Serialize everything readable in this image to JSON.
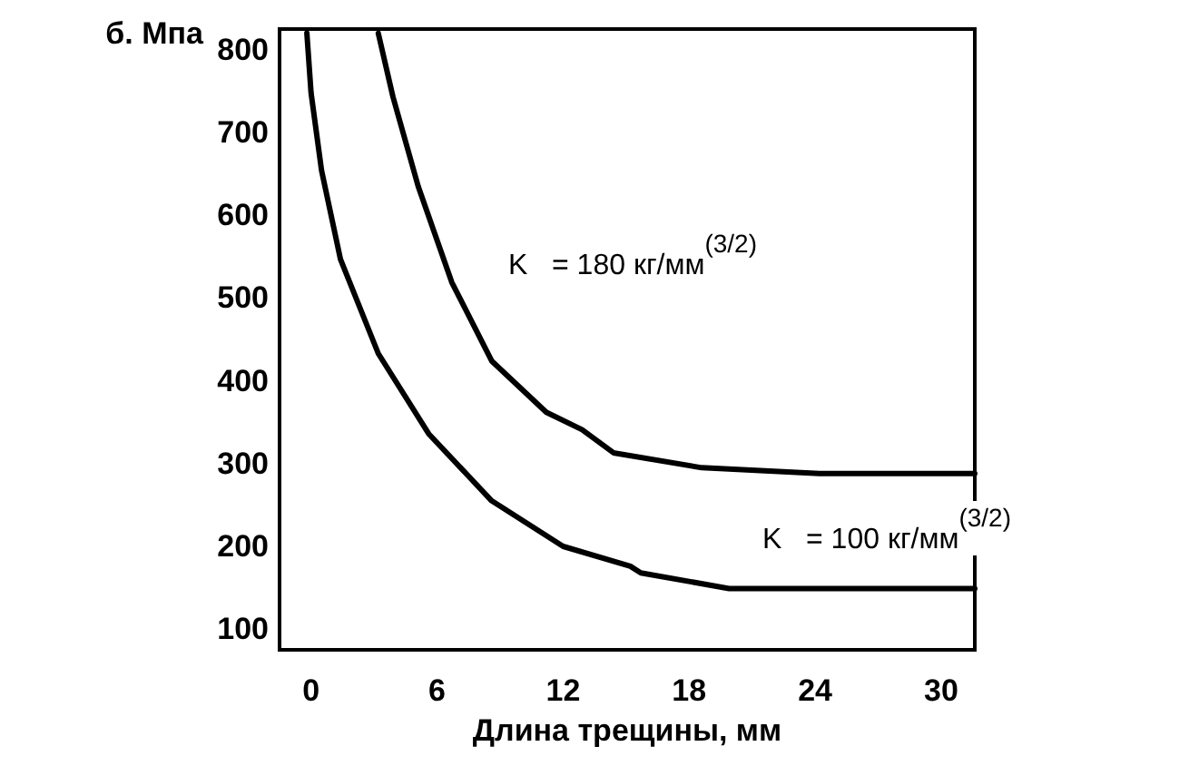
{
  "chart_data": {
    "type": "line",
    "xlabel": "Длина трещины, мм",
    "ylabel": "б. Мпа",
    "xlim": [
      -1.5,
      31.6
    ],
    "xticks": [
      0,
      6,
      12,
      18,
      24,
      30
    ],
    "ylim": [
      75,
      825
    ],
    "yticks": [
      100,
      200,
      300,
      400,
      500,
      600,
      700,
      800
    ],
    "grid": false,
    "marker": "none",
    "line_style": "solid",
    "series": [
      {
        "color": "#000000",
        "x": [
          -0.2,
          0,
          0.5,
          1.4,
          3.2,
          5.6,
          8.6,
          12,
          15.2,
          15.7,
          19.9,
          31.6
        ],
        "values": [
          820,
          748,
          654,
          547,
          433,
          336,
          255,
          200,
          176,
          168,
          149,
          149
        ]
      },
      {
        "color": "#000000",
        "x": [
          3.2,
          3.9,
          5.1,
          6.7,
          8.6,
          11.2,
          12.9,
          14.4,
          18.6,
          24.2,
          31.6
        ],
        "values": [
          820,
          743,
          635,
          519,
          424,
          362,
          341,
          313,
          295,
          288,
          288
        ]
      }
    ],
    "annotations": [
      "K   = 180 кг/мм$^{(3/2)}$",
      "K   = 100 кг/мм$^{(3/2)}$"
    ]
  }
}
